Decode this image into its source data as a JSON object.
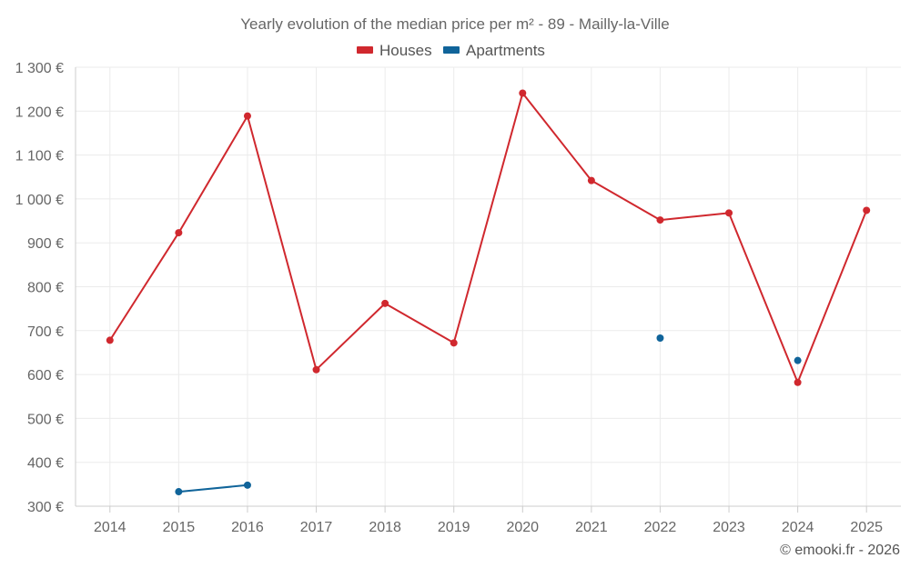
{
  "chart_data": {
    "type": "line",
    "title": "Yearly evolution of the median price per m² - 89 - Mailly-la-Ville",
    "categories": [
      "2014",
      "2015",
      "2016",
      "2017",
      "2018",
      "2019",
      "2020",
      "2021",
      "2022",
      "2023",
      "2024",
      "2025"
    ],
    "yticks": [
      "300 €",
      "400 €",
      "500 €",
      "600 €",
      "700 €",
      "800 €",
      "900 €",
      "1 000 €",
      "1 100 €",
      "1 200 €",
      "1 300 €"
    ],
    "ylim": [
      300,
      1300
    ],
    "ytick_values": [
      300,
      400,
      500,
      600,
      700,
      800,
      900,
      1000,
      1100,
      1200,
      1300
    ],
    "series": [
      {
        "name": "Houses",
        "color": "#d0282e",
        "values": [
          678,
          923,
          1189,
          611,
          762,
          672,
          1241,
          1042,
          952,
          968,
          582,
          974
        ]
      },
      {
        "name": "Apartments",
        "color": "#10649a",
        "values": [
          null,
          333,
          348,
          null,
          null,
          null,
          null,
          null,
          683,
          null,
          632,
          null
        ]
      }
    ],
    "legend_position": "top-center",
    "grid": true
  },
  "credit": "© emooki.fr - 2026"
}
